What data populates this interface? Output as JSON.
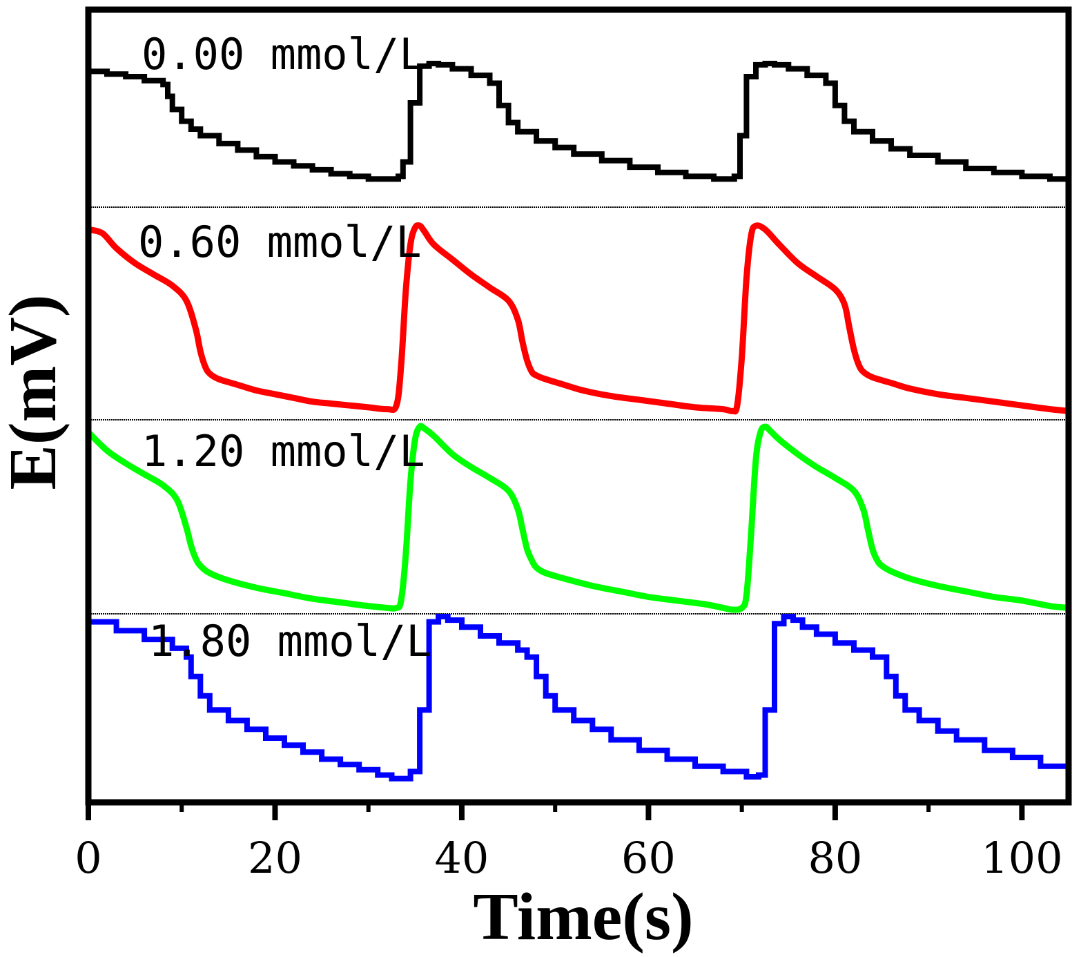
{
  "chart_data": {
    "type": "line",
    "title": "",
    "xlabel": "Time(s)",
    "ylabel": "E(mV)",
    "xlim": [
      0,
      105
    ],
    "xticks_major": [
      0,
      20,
      40,
      60,
      80,
      100
    ],
    "xticks_minor": [
      10,
      30,
      50,
      70,
      90
    ],
    "ytick_labels": false,
    "grid": false,
    "legend": "inline labels above each trace",
    "series": [
      {
        "name": "0.00 mmol/L",
        "color": "#000000",
        "style": "step",
        "x": [
          0,
          2,
          4,
          6,
          8,
          8.5,
          9,
          10,
          11,
          12,
          14,
          16,
          18,
          20,
          22,
          24,
          26,
          28,
          30,
          32,
          33.2,
          33.7,
          34.5,
          35.5,
          36.5,
          37.5,
          39,
          41,
          43,
          44,
          45,
          46,
          48,
          50,
          52,
          55,
          58,
          61,
          64,
          67,
          69.2,
          69.8,
          70.5,
          71.5,
          72.5,
          73.5,
          75,
          77,
          79,
          80,
          81,
          82,
          84,
          86,
          88,
          91,
          94,
          97,
          100,
          103,
          105
        ],
        "y": [
          0.94,
          0.92,
          0.9,
          0.87,
          0.84,
          0.75,
          0.65,
          0.56,
          0.5,
          0.45,
          0.39,
          0.34,
          0.29,
          0.25,
          0.22,
          0.19,
          0.16,
          0.14,
          0.12,
          0.12,
          0.14,
          0.25,
          0.7,
          0.98,
          1.0,
          0.99,
          0.96,
          0.91,
          0.85,
          0.68,
          0.55,
          0.48,
          0.41,
          0.36,
          0.31,
          0.26,
          0.21,
          0.17,
          0.14,
          0.12,
          0.14,
          0.45,
          0.9,
          0.99,
          1.0,
          0.99,
          0.96,
          0.91,
          0.85,
          0.68,
          0.56,
          0.48,
          0.41,
          0.35,
          0.3,
          0.25,
          0.2,
          0.17,
          0.14,
          0.12,
          0.11
        ]
      },
      {
        "name": "0.60 mmol/L",
        "color": "#ff0000",
        "style": "smooth",
        "x": [
          0,
          1.5,
          3,
          5,
          7,
          9,
          10.5,
          11.5,
          12,
          12.5,
          13,
          14,
          16,
          18,
          20,
          22,
          24,
          26,
          28,
          30,
          32,
          33,
          33.5,
          34,
          34.5,
          35,
          35.5,
          36,
          37,
          39,
          41,
          43,
          45,
          46,
          46.5,
          47,
          47.5,
          48,
          49,
          51,
          53,
          56,
          59,
          62,
          65,
          68,
          69,
          69.5,
          70,
          70.5,
          71,
          71.5,
          72.5,
          74,
          76,
          78,
          80,
          81,
          81.5,
          82,
          82.5,
          83,
          84,
          86,
          88,
          91,
          94,
          97,
          100,
          103,
          105
        ],
        "y": [
          0.98,
          0.96,
          0.88,
          0.8,
          0.74,
          0.68,
          0.6,
          0.45,
          0.33,
          0.25,
          0.21,
          0.18,
          0.15,
          0.12,
          0.1,
          0.08,
          0.06,
          0.05,
          0.04,
          0.03,
          0.02,
          0.04,
          0.25,
          0.65,
          0.9,
          0.99,
          1.0,
          0.97,
          0.9,
          0.82,
          0.74,
          0.67,
          0.6,
          0.5,
          0.38,
          0.28,
          0.22,
          0.2,
          0.18,
          0.15,
          0.12,
          0.09,
          0.07,
          0.05,
          0.03,
          0.02,
          0.01,
          0.04,
          0.3,
          0.72,
          0.95,
          1.0,
          0.98,
          0.9,
          0.8,
          0.73,
          0.66,
          0.58,
          0.46,
          0.34,
          0.26,
          0.22,
          0.19,
          0.16,
          0.13,
          0.1,
          0.08,
          0.06,
          0.04,
          0.02,
          0.01
        ]
      },
      {
        "name": "1.20 mmol/L",
        "color": "#00ff00",
        "style": "smooth",
        "x": [
          0,
          2,
          4,
          6,
          8,
          9.5,
          10.5,
          11,
          11.5,
          12,
          13,
          15,
          18,
          21,
          24,
          27,
          30,
          32,
          33,
          33.5,
          34,
          34.5,
          35,
          35.5,
          36,
          37,
          39,
          41,
          43,
          45,
          46,
          46.5,
          47,
          47.5,
          48,
          49,
          51,
          54,
          57,
          60,
          63,
          66,
          68,
          69,
          70,
          70.5,
          71,
          71.5,
          72,
          72.5,
          73,
          74,
          76,
          78,
          80,
          82,
          83,
          83.5,
          84,
          84.5,
          85,
          86,
          88,
          91,
          94,
          97,
          100,
          103,
          105
        ],
        "y": [
          0.97,
          0.87,
          0.8,
          0.74,
          0.68,
          0.6,
          0.45,
          0.35,
          0.28,
          0.24,
          0.2,
          0.16,
          0.12,
          0.09,
          0.06,
          0.04,
          0.02,
          0.01,
          0.01,
          0.05,
          0.3,
          0.7,
          0.93,
          1.0,
          0.99,
          0.95,
          0.85,
          0.78,
          0.72,
          0.65,
          0.55,
          0.44,
          0.33,
          0.27,
          0.23,
          0.2,
          0.17,
          0.13,
          0.1,
          0.07,
          0.05,
          0.03,
          0.01,
          0.0,
          0.01,
          0.08,
          0.42,
          0.82,
          0.97,
          1.0,
          0.98,
          0.93,
          0.85,
          0.78,
          0.72,
          0.65,
          0.55,
          0.44,
          0.33,
          0.27,
          0.24,
          0.21,
          0.17,
          0.13,
          0.1,
          0.07,
          0.05,
          0.02,
          0.01
        ]
      },
      {
        "name": "1.80 mmol/L",
        "color": "#0000ff",
        "style": "step",
        "x": [
          0,
          3,
          6,
          9,
          10.5,
          11,
          12,
          13,
          15,
          17,
          19,
          21,
          23,
          25,
          27,
          29,
          31,
          32.5,
          33.8,
          34.5,
          35.5,
          36.5,
          37.5,
          38.5,
          40,
          42,
          44,
          46,
          47,
          48,
          49,
          50,
          52,
          54,
          56,
          59,
          62,
          65,
          68,
          70.5,
          71.8,
          72.5,
          73.5,
          74.5,
          75.5,
          76.5,
          78,
          80,
          82,
          84,
          85.5,
          86.5,
          87.5,
          89,
          91,
          93,
          96,
          99,
          102,
          105
        ],
        "y": [
          0.97,
          0.92,
          0.87,
          0.82,
          0.77,
          0.66,
          0.55,
          0.47,
          0.41,
          0.36,
          0.31,
          0.27,
          0.23,
          0.19,
          0.16,
          0.13,
          0.1,
          0.08,
          0.08,
          0.12,
          0.47,
          0.97,
          1.0,
          0.98,
          0.94,
          0.89,
          0.85,
          0.81,
          0.77,
          0.66,
          0.55,
          0.47,
          0.41,
          0.36,
          0.3,
          0.24,
          0.19,
          0.15,
          0.12,
          0.09,
          0.1,
          0.47,
          0.96,
          1.0,
          0.98,
          0.94,
          0.9,
          0.85,
          0.81,
          0.77,
          0.66,
          0.55,
          0.47,
          0.41,
          0.35,
          0.3,
          0.24,
          0.2,
          0.15,
          0.1
        ]
      }
    ]
  }
}
